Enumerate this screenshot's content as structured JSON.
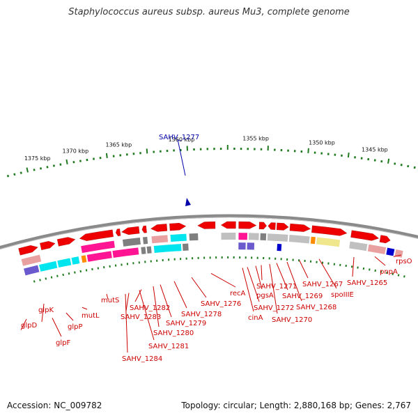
{
  "title": "Staphylococcus aureus subsp. aureus Mu3, complete genome",
  "footer": {
    "accession": "Accession: NC_009782",
    "info": "Topology: circular; Length: 2,880,168 bp; Genes: 2,767"
  },
  "highlight": {
    "label": "SAHV_1277",
    "color": "#0000aa"
  },
  "colors": {
    "backbone": "#8a8a8a",
    "ticks": "#1f7a1f",
    "gene_forward": "#ee0000",
    "label_line": "#cc0000"
  },
  "scale": {
    "labels": [
      "1375 kbp",
      "1370 kbp",
      "1365 kbp",
      "1360 kbp",
      "1355 kbp",
      "1350 kbp",
      "1345 kbp"
    ]
  },
  "gene_labels": [
    "glpD",
    "glpK",
    "glpF",
    "glpP",
    "mutL",
    "mutS",
    "SAHV_1284",
    "SAHV_1283",
    "SAHV_1282",
    "SAHV_1281",
    "SAHV_1280",
    "SAHV_1279",
    "SAHV_1278",
    "SAHV_1276",
    "recA",
    "cinA",
    "SAHV_1272",
    "pgsA",
    "SAHV_1271",
    "SAHV_1270",
    "SAHV_1269",
    "SAHV_1268",
    "SAHV_1267",
    "spoIIIE",
    "SAHV_1265",
    "pnpA",
    "rpsO"
  ],
  "category_colors": [
    "#00e5ee",
    "#ff1493",
    "#7f7f7f",
    "#e8a0a0",
    "#ff8c00",
    "#f0e68c",
    "#6a5acd",
    "#0000cd",
    "#c0c0c0",
    "#ee0000"
  ]
}
